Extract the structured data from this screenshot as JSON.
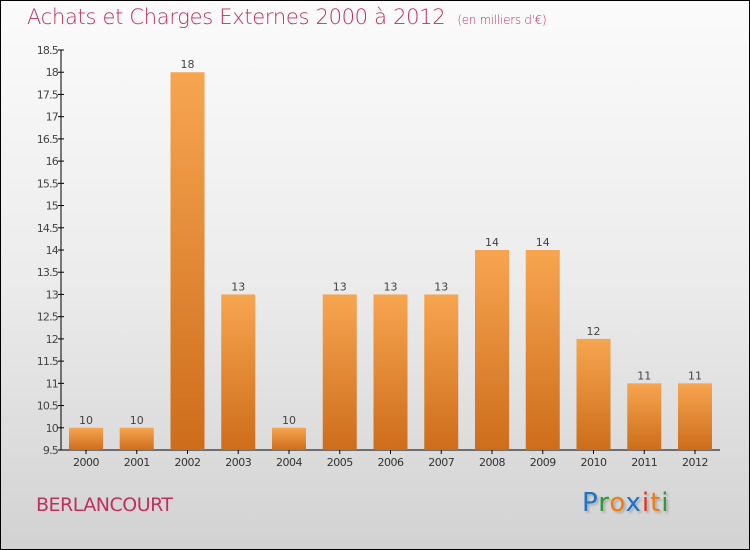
{
  "title": "Achats et Charges Externes 2000 à 2012",
  "unit": "(en milliers d'€)",
  "town": "BERLANCOURT",
  "logo": {
    "text": "Proxiti",
    "letters": [
      "P",
      "r",
      "o",
      "x",
      "i",
      "t",
      "i"
    ],
    "colors": [
      "#1a73c9",
      "#2a9a3a",
      "#f07b12",
      "#1a73c9",
      "#e8321e",
      "#f07b12",
      "#2a9a3a"
    ]
  },
  "colors": {
    "bar_top": "#f7a550",
    "bar_bottom": "#cd6d1c",
    "title": "#c0305e"
  },
  "chart_data": {
    "type": "bar",
    "title": "Achats et Charges Externes 2000 à 2012",
    "xlabel": "",
    "ylabel": "",
    "categories": [
      "2000",
      "2001",
      "2002",
      "2003",
      "2004",
      "2005",
      "2006",
      "2007",
      "2008",
      "2009",
      "2010",
      "2011",
      "2012"
    ],
    "values": [
      10,
      10,
      18,
      13,
      10,
      13,
      13,
      13,
      14,
      14,
      12,
      11,
      11
    ],
    "ylim": [
      9.5,
      18.5
    ],
    "yticks": [
      "9.5",
      "10",
      "10.5",
      "11",
      "11.5",
      "12",
      "12.5",
      "13",
      "13.5",
      "14",
      "14.5",
      "15",
      "15.5",
      "16",
      "16.5",
      "17",
      "17.5",
      "18",
      "18.5"
    ],
    "grid": false
  }
}
